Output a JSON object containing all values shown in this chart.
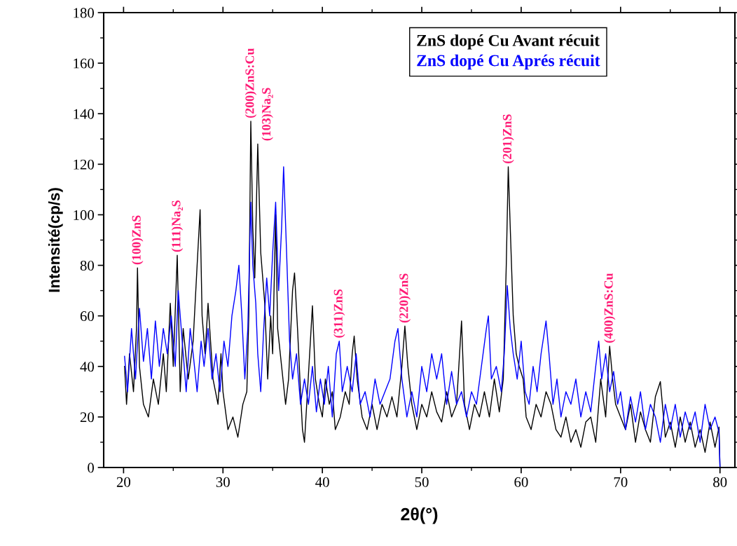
{
  "chart_data": {
    "type": "line",
    "xlabel": "2θ(°)",
    "ylabel": "Intensité(cp/s)",
    "xlim": [
      18,
      81.5
    ],
    "ylim": [
      0,
      180
    ],
    "xticks": [
      20,
      {
        "value": 25,
        "label": null
      },
      30,
      {
        "value": 35,
        "label": null
      },
      40,
      {
        "value": 45,
        "label": null
      },
      50,
      {
        "value": 55,
        "label": null
      },
      60,
      {
        "value": 65,
        "label": null
      },
      70,
      {
        "value": 75,
        "label": null
      },
      80
    ],
    "yticks": [
      0,
      {
        "value": 10,
        "label": null
      },
      20,
      {
        "value": 30,
        "label": null
      },
      40,
      {
        "value": 50,
        "label": null
      },
      60,
      {
        "value": 70,
        "label": null
      },
      80,
      {
        "value": 90,
        "label": null
      },
      100,
      {
        "value": 110,
        "label": null
      },
      120,
      {
        "value": 130,
        "label": null
      },
      140,
      {
        "value": 150,
        "label": null
      },
      160,
      {
        "value": 170,
        "label": null
      },
      180
    ],
    "grid": false,
    "legend": "top right",
    "marker": "none",
    "line_style": "solid",
    "series": [
      {
        "name": "ZnS dopé Cu Avant récuit",
        "color": "#000000",
        "x": [
          20.1,
          20.3,
          20.6,
          21.0,
          21.3,
          21.4,
          21.6,
          22.0,
          22.5,
          23.0,
          23.5,
          24.0,
          24.3,
          24.7,
          25.0,
          25.4,
          25.7,
          26.0,
          26.5,
          27.0,
          27.4,
          27.7,
          27.9,
          28.2,
          28.5,
          29.0,
          29.5,
          29.8,
          30.0,
          30.5,
          31.0,
          31.5,
          32.0,
          32.4,
          32.6,
          32.8,
          33.0,
          33.2,
          33.5,
          33.8,
          34.2,
          34.5,
          34.8,
          35.0,
          35.3,
          35.5,
          35.9,
          36.3,
          36.6,
          37.0,
          37.2,
          37.5,
          37.8,
          38.0,
          38.2,
          38.5,
          39.0,
          39.3,
          39.7,
          40.0,
          40.3,
          40.7,
          41.0,
          41.3,
          41.8,
          42.3,
          42.7,
          43.0,
          43.2,
          43.5,
          44.0,
          44.5,
          45.0,
          45.5,
          46.0,
          46.5,
          47.0,
          47.5,
          48.0,
          48.3,
          48.6,
          49.0,
          49.5,
          50.0,
          50.5,
          51.0,
          51.5,
          52.0,
          52.5,
          53.0,
          53.5,
          54.0,
          54.3,
          54.8,
          55.3,
          55.8,
          56.3,
          56.8,
          57.3,
          57.8,
          58.2,
          58.5,
          58.7,
          58.9,
          59.2,
          59.5,
          59.8,
          60.2,
          60.5,
          61.0,
          61.5,
          62.0,
          62.5,
          63.0,
          63.5,
          64.0,
          64.5,
          65.0,
          65.5,
          66.0,
          66.5,
          67.0,
          67.5,
          68.0,
          68.5,
          68.9,
          69.2,
          69.5,
          70.0,
          70.5,
          71.0,
          71.5,
          72.0,
          72.5,
          73.0,
          73.5,
          74.0,
          74.5,
          75.0,
          75.5,
          76.0,
          76.5,
          77.0,
          77.5,
          78.0,
          78.5,
          79.0,
          79.5,
          79.9,
          80.0
        ],
        "values": [
          40,
          25,
          45,
          30,
          55,
          79,
          40,
          25,
          20,
          35,
          25,
          45,
          30,
          65,
          40,
          84,
          30,
          55,
          35,
          50,
          80,
          102,
          60,
          45,
          65,
          35,
          25,
          45,
          30,
          15,
          20,
          12,
          25,
          30,
          60,
          137,
          95,
          75,
          128,
          85,
          65,
          35,
          60,
          45,
          100,
          55,
          40,
          25,
          35,
          70,
          77,
          55,
          30,
          15,
          10,
          30,
          64,
          35,
          25,
          20,
          35,
          25,
          30,
          15,
          20,
          30,
          25,
          45,
          52,
          35,
          20,
          15,
          25,
          15,
          25,
          20,
          28,
          20,
          40,
          56,
          40,
          25,
          15,
          25,
          20,
          30,
          22,
          18,
          30,
          20,
          25,
          58,
          25,
          15,
          25,
          20,
          30,
          20,
          35,
          22,
          35,
          80,
          119,
          95,
          60,
          45,
          40,
          35,
          20,
          15,
          25,
          20,
          30,
          25,
          15,
          12,
          20,
          10,
          15,
          8,
          18,
          20,
          10,
          35,
          20,
          48,
          35,
          25,
          20,
          15,
          25,
          10,
          22,
          15,
          10,
          28,
          34,
          12,
          18,
          8,
          20,
          10,
          18,
          8,
          15,
          6,
          18,
          8,
          16,
          0
        ]
      },
      {
        "name": "ZnS dopé Cu Aprés récuit",
        "color": "#0000ff",
        "x": [
          20.1,
          20.4,
          20.8,
          21.2,
          21.6,
          22.0,
          22.4,
          22.8,
          23.2,
          23.6,
          24.0,
          24.4,
          24.8,
          25.2,
          25.5,
          25.9,
          26.3,
          26.7,
          27.0,
          27.4,
          27.8,
          28.1,
          28.5,
          28.9,
          29.3,
          29.7,
          30.1,
          30.5,
          30.9,
          31.3,
          31.6,
          31.9,
          32.2,
          32.5,
          32.8,
          33.0,
          33.3,
          33.5,
          33.8,
          34.1,
          34.4,
          34.7,
          35.0,
          35.3,
          35.6,
          35.9,
          36.1,
          36.4,
          36.7,
          37.0,
          37.4,
          37.8,
          38.2,
          38.6,
          39.0,
          39.4,
          39.8,
          40.2,
          40.6,
          41.0,
          41.4,
          41.7,
          42.0,
          42.5,
          43.0,
          43.4,
          43.8,
          44.3,
          44.8,
          45.3,
          45.8,
          46.3,
          46.8,
          47.3,
          47.6,
          48.0,
          48.5,
          49.0,
          49.5,
          50.0,
          50.5,
          51.0,
          51.5,
          52.0,
          52.5,
          53.0,
          53.5,
          54.0,
          54.5,
          55.0,
          55.5,
          56.0,
          56.5,
          56.7,
          57.0,
          57.5,
          58.0,
          58.3,
          58.6,
          58.9,
          59.2,
          59.6,
          60.0,
          60.4,
          60.8,
          61.2,
          61.6,
          62.0,
          62.5,
          62.8,
          63.2,
          63.6,
          64.0,
          64.5,
          65.0,
          65.5,
          66.0,
          66.5,
          67.0,
          67.5,
          67.8,
          68.1,
          68.5,
          68.9,
          69.3,
          69.7,
          70.0,
          70.5,
          71.0,
          71.5,
          72.0,
          72.5,
          73.0,
          73.5,
          74.0,
          74.5,
          75.0,
          75.5,
          76.0,
          76.5,
          77.0,
          77.5,
          78.0,
          78.5,
          79.0,
          79.5,
          79.9,
          80.0
        ],
        "values": [
          44,
          30,
          55,
          35,
          63,
          42,
          55,
          35,
          58,
          40,
          55,
          45,
          60,
          40,
          70,
          50,
          30,
          55,
          45,
          30,
          50,
          40,
          55,
          35,
          45,
          30,
          50,
          40,
          60,
          70,
          80,
          60,
          35,
          55,
          105,
          80,
          65,
          45,
          30,
          55,
          75,
          60,
          85,
          105,
          70,
          95,
          119,
          85,
          50,
          35,
          45,
          25,
          35,
          25,
          40,
          22,
          35,
          25,
          40,
          20,
          45,
          50,
          30,
          40,
          30,
          45,
          25,
          30,
          20,
          35,
          25,
          30,
          35,
          50,
          55,
          35,
          20,
          30,
          20,
          40,
          30,
          45,
          35,
          45,
          25,
          38,
          25,
          30,
          20,
          30,
          25,
          40,
          55,
          60,
          35,
          40,
          30,
          45,
          72,
          55,
          45,
          35,
          50,
          30,
          25,
          40,
          30,
          45,
          58,
          45,
          25,
          35,
          20,
          30,
          25,
          35,
          20,
          30,
          22,
          40,
          50,
          35,
          45,
          30,
          38,
          25,
          30,
          15,
          28,
          18,
          30,
          15,
          25,
          20,
          10,
          25,
          15,
          25,
          12,
          22,
          15,
          22,
          10,
          25,
          15,
          20,
          14,
          0
        ]
      }
    ],
    "annotations": [
      {
        "text": "(100)ZnS",
        "x": 21.4,
        "y": 79
      },
      {
        "text": "(111)Na₂S",
        "x": 25.4,
        "y": 84
      },
      {
        "text": "(200)ZnS:Cu",
        "x": 32.8,
        "y": 137
      },
      {
        "text": "(103)Na₂S",
        "x": 33.5,
        "y": 128
      },
      {
        "text": "(311)ZnS",
        "x": 41.7,
        "y": 50
      },
      {
        "text": "(220)ZnS",
        "x": 48.3,
        "y": 56
      },
      {
        "text": "(201)ZnS",
        "x": 58.7,
        "y": 119
      },
      {
        "text": "(400)ZnS:Cu",
        "x": 68.9,
        "y": 48
      }
    ]
  }
}
